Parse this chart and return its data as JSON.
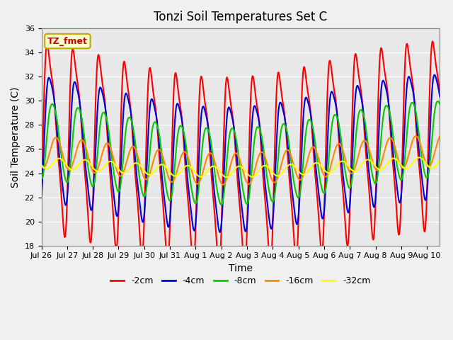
{
  "title": "Tonzi Soil Temperatures Set C",
  "xlabel": "Time",
  "ylabel": "Soil Temperature (C)",
  "ylim": [
    18,
    36
  ],
  "yticks": [
    18,
    20,
    22,
    24,
    26,
    28,
    30,
    32,
    34,
    36
  ],
  "annotation_text": "TZ_fmet",
  "annotation_color": "#cc0000",
  "annotation_bg": "#ffffcc",
  "annotation_border": "#bbaa00",
  "legend_entries": [
    "-2cm",
    "-4cm",
    "-8cm",
    "-16cm",
    "-32cm"
  ],
  "line_colors": [
    "#ff0000",
    "#0000dd",
    "#00cc00",
    "#ff8800",
    "#ffff00"
  ],
  "line_widths": [
    1.5,
    1.5,
    1.5,
    1.5,
    1.5
  ],
  "bg_color": "#e8e8e8",
  "n_points": 720,
  "start_day": 0,
  "end_day": 15.5,
  "tick_positions": [
    0,
    1,
    2,
    3,
    4,
    5,
    6,
    7,
    8,
    9,
    10,
    11,
    12,
    13,
    14,
    15
  ],
  "tick_labels": [
    "Jul 26",
    "Jul 27",
    "Jul 28",
    "Jul 29",
    "Jul 30",
    "Jul 31",
    "Aug 1",
    "Aug 2",
    "Aug 3",
    "Aug 4",
    "Aug 5",
    "Aug 6",
    "Aug 7",
    "Aug 8",
    "Aug 9",
    "Aug 10"
  ]
}
